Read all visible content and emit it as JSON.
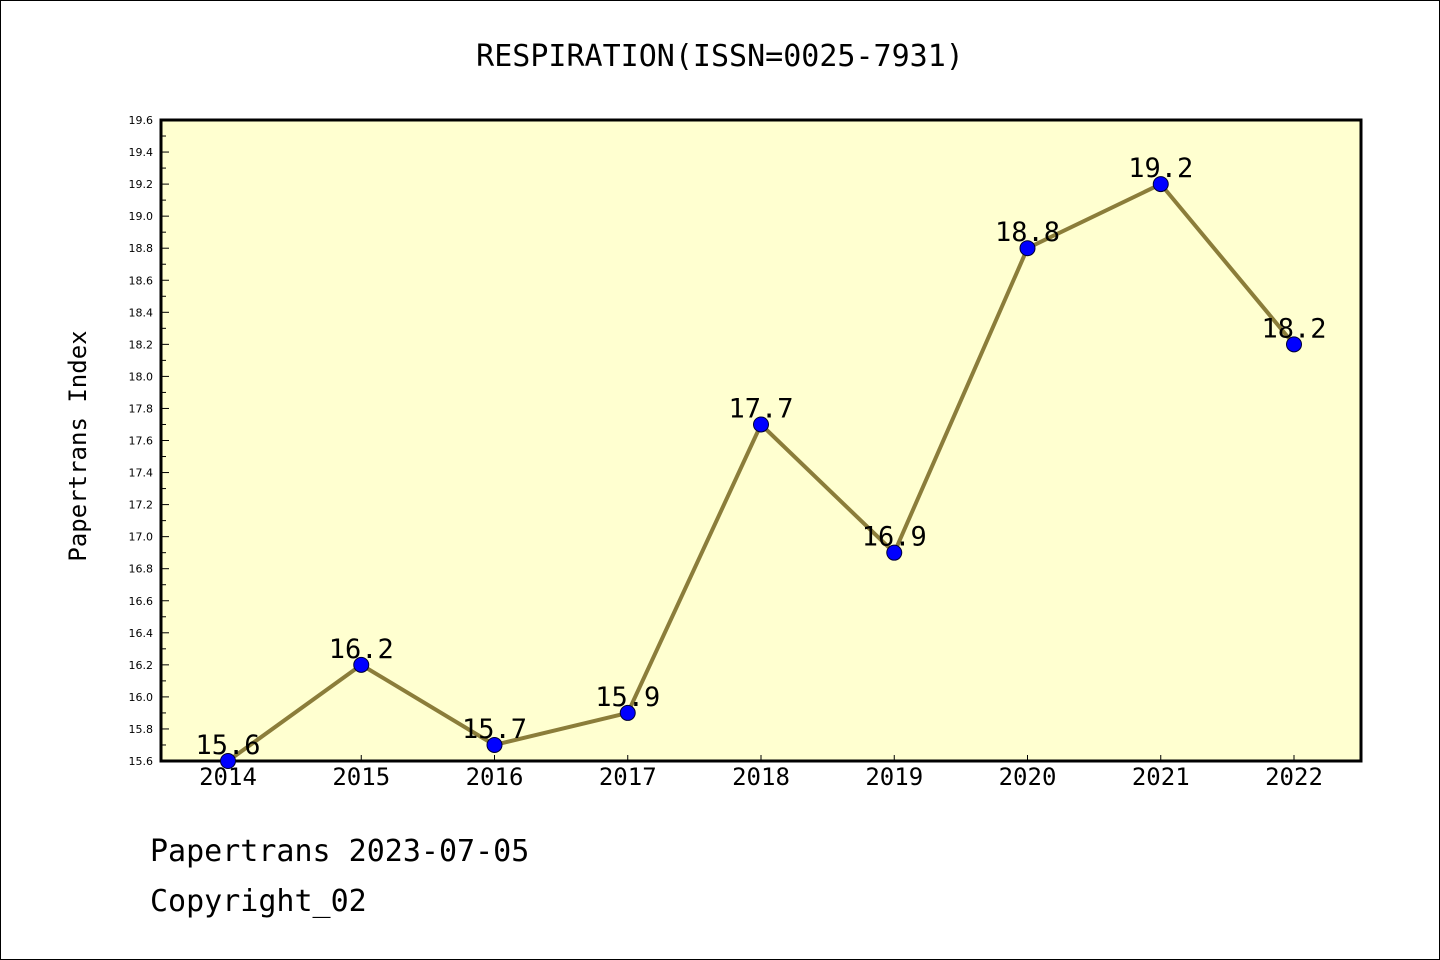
{
  "chart_data": {
    "type": "line",
    "title": "RESPIRATION(ISSN=0025-7931)",
    "xlabel": "",
    "ylabel": "Papertrans Index",
    "categories": [
      "2014",
      "2015",
      "2016",
      "2017",
      "2018",
      "2019",
      "2020",
      "2021",
      "2022"
    ],
    "series": [
      {
        "values": [
          15.6,
          16.2,
          15.7,
          15.9,
          17.7,
          16.9,
          18.8,
          19.2,
          18.2
        ],
        "labels": [
          "15.6",
          "16.2",
          "15.7",
          "15.9",
          "17.7",
          "16.9",
          "18.8",
          "19.2",
          "18.2"
        ],
        "line_color": "#8b7d3a",
        "marker_color": "#0000ff"
      }
    ],
    "ylim": [
      15.6,
      19.6
    ],
    "yticks": [
      "15.6",
      "15.8",
      "16.0",
      "16.2",
      "16.4",
      "16.6",
      "16.8",
      "17.0",
      "17.2",
      "17.4",
      "17.6",
      "17.8",
      "18.0",
      "18.2",
      "18.4",
      "18.6",
      "18.8",
      "19.0",
      "19.2",
      "19.4",
      "19.6"
    ],
    "grid": false,
    "plot_background": "#ffffd0"
  },
  "footer": {
    "line1": "Papertrans 2023-07-05",
    "line2": "Copyright_02"
  }
}
